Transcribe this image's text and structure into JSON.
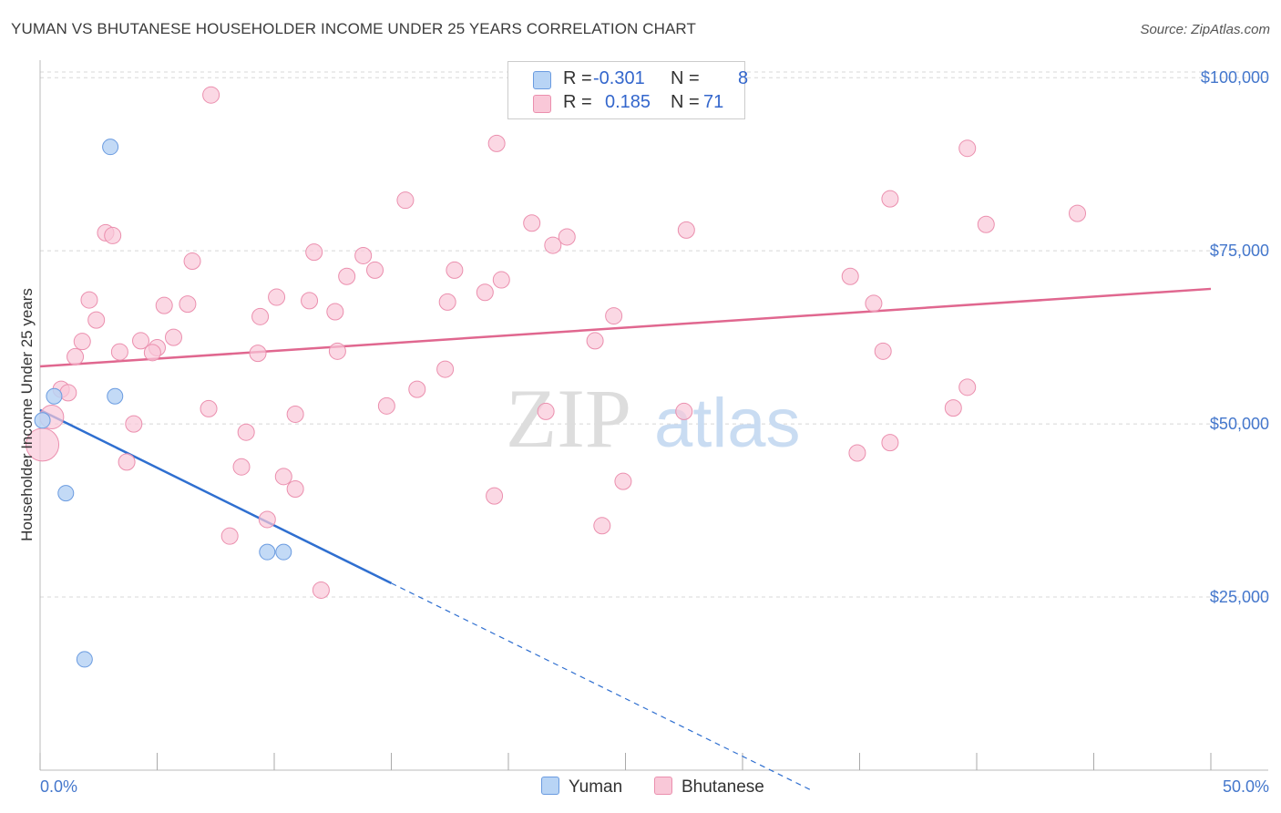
{
  "header": {
    "title": "YUMAN VS BHUTANESE HOUSEHOLDER INCOME UNDER 25 YEARS CORRELATION CHART",
    "source": "Source: ZipAtlas.com"
  },
  "legend": {
    "yuman": {
      "r_label": "R =",
      "r_value": "-0.301",
      "n_label": "N =",
      "n_value": "8"
    },
    "bhutanese": {
      "r_label": "R =",
      "r_value": "0.185",
      "n_label": "N =",
      "n_value": "71"
    }
  },
  "bottom_legend": {
    "yuman": "Yuman",
    "bhutanese": "Bhutanese"
  },
  "watermark": {
    "zip": "ZIP",
    "atlas": "atlas"
  },
  "colors": {
    "yuman_fill": "#b8d4f5",
    "yuman_stroke": "#6a9be0",
    "yuman_line": "#2f6fd0",
    "bhutanese_fill": "#f9c8d8",
    "bhutanese_stroke": "#eb8fae",
    "bhutanese_line": "#e0678f",
    "axis_label": "#4477cc",
    "grid": "#d8d8d8"
  },
  "chart_data": {
    "type": "scatter",
    "title": "YUMAN VS BHUTANESE HOUSEHOLDER INCOME UNDER 25 YEARS CORRELATION CHART",
    "xlabel": "",
    "ylabel": "Householder Income Under 25 years",
    "xlim": [
      0,
      50
    ],
    "ylim": [
      0,
      102000
    ],
    "x_tick_labels": [
      "0.0%",
      "50.0%"
    ],
    "y_ticks": [
      25000,
      50000,
      75000,
      100000
    ],
    "y_tick_labels": [
      "$25,000",
      "$50,000",
      "$75,000",
      "$100,000"
    ],
    "series": [
      {
        "name": "Yuman",
        "r": -0.301,
        "n": 8,
        "points": [
          {
            "x": 3.0,
            "y": 90000
          },
          {
            "x": 0.6,
            "y": 54000
          },
          {
            "x": 3.2,
            "y": 54000
          },
          {
            "x": 0.1,
            "y": 50500
          },
          {
            "x": 1.1,
            "y": 40000
          },
          {
            "x": 9.7,
            "y": 31500
          },
          {
            "x": 10.4,
            "y": 31500
          },
          {
            "x": 1.9,
            "y": 16000
          }
        ],
        "trend": {
          "x0": 0,
          "y0": 52000,
          "x1": 15.0,
          "y1": 27000,
          "dash_to_x": 33.0
        }
      },
      {
        "name": "Bhutanese",
        "r": 0.185,
        "n": 71,
        "points": [
          {
            "x": 7.3,
            "y": 97500
          },
          {
            "x": 19.5,
            "y": 90500
          },
          {
            "x": 39.6,
            "y": 89800
          },
          {
            "x": 15.6,
            "y": 82300
          },
          {
            "x": 36.3,
            "y": 82500
          },
          {
            "x": 44.3,
            "y": 80400
          },
          {
            "x": 2.8,
            "y": 77600
          },
          {
            "x": 3.1,
            "y": 77200
          },
          {
            "x": 21.0,
            "y": 79000
          },
          {
            "x": 22.5,
            "y": 77000
          },
          {
            "x": 27.6,
            "y": 78000
          },
          {
            "x": 40.4,
            "y": 78800
          },
          {
            "x": 21.9,
            "y": 75800
          },
          {
            "x": 11.7,
            "y": 74800
          },
          {
            "x": 13.8,
            "y": 74300
          },
          {
            "x": 6.5,
            "y": 73500
          },
          {
            "x": 14.3,
            "y": 72200
          },
          {
            "x": 17.7,
            "y": 72200
          },
          {
            "x": 13.1,
            "y": 71300
          },
          {
            "x": 19.7,
            "y": 70800
          },
          {
            "x": 34.6,
            "y": 71300
          },
          {
            "x": 19.0,
            "y": 69000
          },
          {
            "x": 10.1,
            "y": 68300
          },
          {
            "x": 11.5,
            "y": 67800
          },
          {
            "x": 2.1,
            "y": 67900
          },
          {
            "x": 5.3,
            "y": 67100
          },
          {
            "x": 6.3,
            "y": 67300
          },
          {
            "x": 17.4,
            "y": 67600
          },
          {
            "x": 35.6,
            "y": 67400
          },
          {
            "x": 12.6,
            "y": 66200
          },
          {
            "x": 9.4,
            "y": 65500
          },
          {
            "x": 24.5,
            "y": 65600
          },
          {
            "x": 2.4,
            "y": 65000
          },
          {
            "x": 5.7,
            "y": 62500
          },
          {
            "x": 1.8,
            "y": 61900
          },
          {
            "x": 4.3,
            "y": 62000
          },
          {
            "x": 23.7,
            "y": 62000
          },
          {
            "x": 5.0,
            "y": 61000
          },
          {
            "x": 3.4,
            "y": 60400
          },
          {
            "x": 4.8,
            "y": 60300
          },
          {
            "x": 9.3,
            "y": 60200
          },
          {
            "x": 12.7,
            "y": 60500
          },
          {
            "x": 36.0,
            "y": 60500
          },
          {
            "x": 1.5,
            "y": 59700
          },
          {
            "x": 17.3,
            "y": 57900
          },
          {
            "x": 0.9,
            "y": 55000
          },
          {
            "x": 1.2,
            "y": 54500
          },
          {
            "x": 16.1,
            "y": 55000
          },
          {
            "x": 39.6,
            "y": 55300
          },
          {
            "x": 14.8,
            "y": 52600
          },
          {
            "x": 7.2,
            "y": 52200
          },
          {
            "x": 39.0,
            "y": 52300
          },
          {
            "x": 21.6,
            "y": 51800
          },
          {
            "x": 27.5,
            "y": 51800
          },
          {
            "x": 10.9,
            "y": 51400
          },
          {
            "x": 0.5,
            "y": 51000
          },
          {
            "x": 4.0,
            "y": 50000
          },
          {
            "x": 8.8,
            "y": 48800
          },
          {
            "x": 0.1,
            "y": 47000
          },
          {
            "x": 36.3,
            "y": 47300
          },
          {
            "x": 34.9,
            "y": 45800
          },
          {
            "x": 3.7,
            "y": 44500
          },
          {
            "x": 8.6,
            "y": 43800
          },
          {
            "x": 10.4,
            "y": 42400
          },
          {
            "x": 24.9,
            "y": 41700
          },
          {
            "x": 10.9,
            "y": 40600
          },
          {
            "x": 19.4,
            "y": 39600
          },
          {
            "x": 9.7,
            "y": 36200
          },
          {
            "x": 24.0,
            "y": 35300
          },
          {
            "x": 8.1,
            "y": 33800
          },
          {
            "x": 12.0,
            "y": 26000
          }
        ],
        "trend": {
          "x0": 0,
          "y0": 58300,
          "x1": 50,
          "y1": 69500
        }
      }
    ]
  }
}
